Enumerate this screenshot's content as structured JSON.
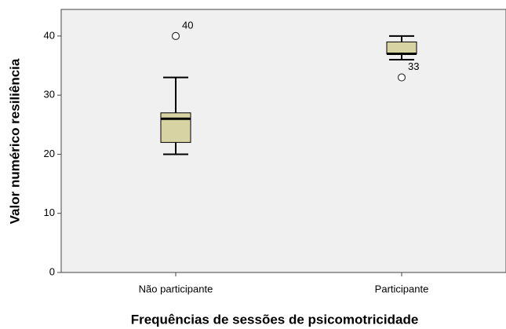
{
  "chart_data": {
    "type": "box",
    "x_label": "Frequências de sessões de psicomotricidade",
    "y_label": "Valor numérico resiliência",
    "categories": [
      "Não participante",
      "Participante"
    ],
    "boxes": [
      {
        "min": 20,
        "q1": 22,
        "median": 26,
        "q3": 27,
        "max": 33,
        "outliers": [
          40
        ]
      },
      {
        "min": 36,
        "q1": 37,
        "median": 37,
        "q3": 39,
        "max": 40,
        "outliers": [
          33
        ]
      }
    ],
    "color": "#d8d3a3",
    "ylim": [
      0,
      44.5
    ],
    "yticks": [
      0,
      10,
      20,
      30,
      40
    ]
  }
}
